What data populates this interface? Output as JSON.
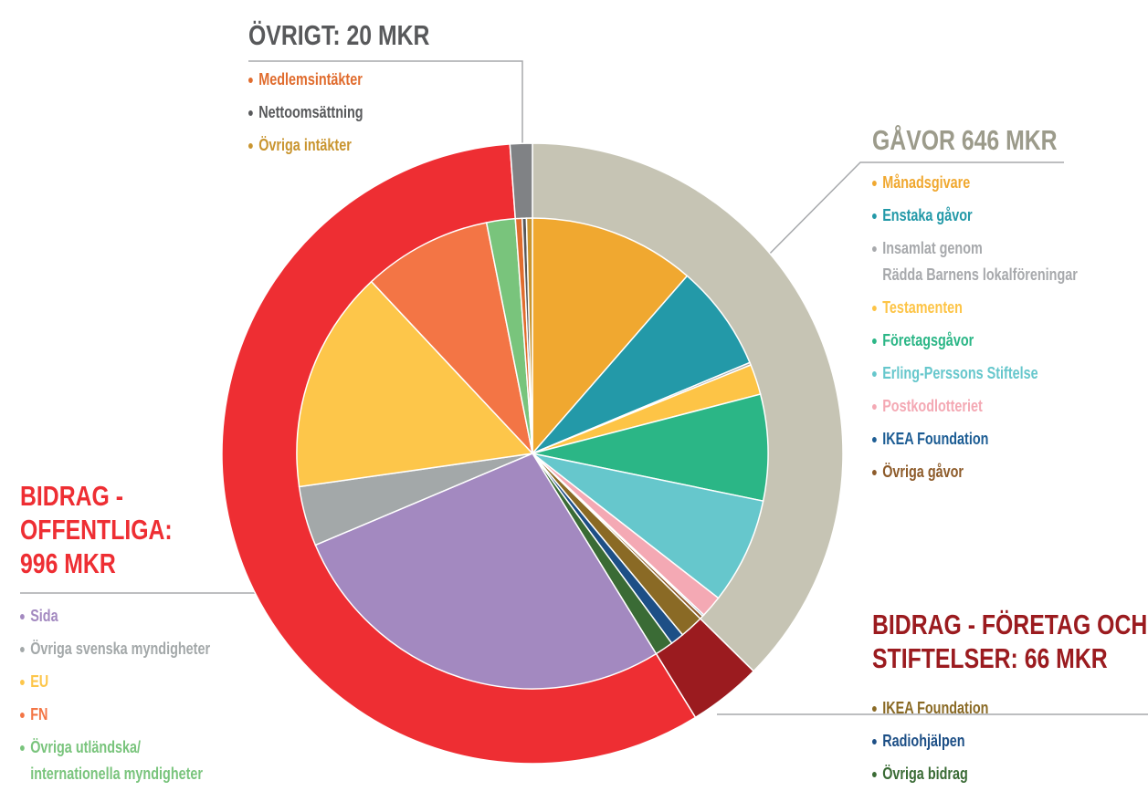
{
  "chart_data": {
    "type": "pie",
    "groups": [
      {
        "label": "GÅVOR 646 MKR",
        "value": 646,
        "color": "#c6c4b4",
        "label_color": "#9c9b8b",
        "items": [
          {
            "name": "Månadsgivare",
            "value": 197,
            "color": "#f0a830"
          },
          {
            "name": "Enstaka gåvor",
            "value": 126,
            "color": "#2399a8"
          },
          {
            "name": "Insamlat genom\nRädda Barnens lokalföreningar",
            "value": 3,
            "color": "#a7a9ac"
          },
          {
            "name": "Testamenten",
            "value": 36,
            "color": "#fdc446"
          },
          {
            "name": "Företagsgåvor",
            "value": 126,
            "color": "#2bb686"
          },
          {
            "name": "Erling-Perssons Stiftelse",
            "value": 126,
            "color": "#66c7cc"
          },
          {
            "name": "Postkodlotteriet",
            "value": 26,
            "color": "#f4a9b4"
          },
          {
            "name": "IKEA Foundation",
            "value": 2,
            "color": "#1d5d94"
          },
          {
            "name": "Övriga gåvor",
            "value": 4,
            "color": "#8d5b2a"
          }
        ]
      },
      {
        "label": "BIDRAG - FÖRETAG OCH STIFTELSER: 66 MKR",
        "value": 66,
        "color": "#9b1b1f",
        "label_color": "#9b1b1f",
        "items": [
          {
            "name": "IKEA Foundation",
            "value": 28,
            "color": "#8a6a25"
          },
          {
            "name": "Radiohjälpen",
            "value": 16,
            "color": "#1d4f86"
          },
          {
            "name": "Övriga bidrag",
            "value": 22,
            "color": "#3a6b35"
          }
        ]
      },
      {
        "label": "BIDRAG - OFFENTLIGA: 996 MKR",
        "value": 996,
        "color": "#ee2e33",
        "label_color": "#ee2e33",
        "items": [
          {
            "name": "Sida",
            "value": 474,
            "color": "#a389c0"
          },
          {
            "name": "Övriga svenska myndigheter",
            "value": 71,
            "color": "#a3a8a9"
          },
          {
            "name": "EU",
            "value": 264,
            "color": "#fdc64a"
          },
          {
            "name": "FN",
            "value": 153,
            "color": "#f37545"
          },
          {
            "name": "Övriga utländska/\ninternationella myndigheter",
            "value": 34,
            "color": "#79c47c"
          }
        ]
      },
      {
        "label": "ÖVRIGT: 20 MKR",
        "value": 20,
        "color": "#808285",
        "label_color": "#58595b",
        "items": [
          {
            "name": "Medlemsintäkter",
            "value": 8,
            "color": "#e06c2e"
          },
          {
            "name": "Nettoomsättning",
            "value": 5,
            "color": "#58595b"
          },
          {
            "name": "Övriga intäkter",
            "value": 7,
            "color": "#c99530"
          }
        ]
      }
    ]
  }
}
